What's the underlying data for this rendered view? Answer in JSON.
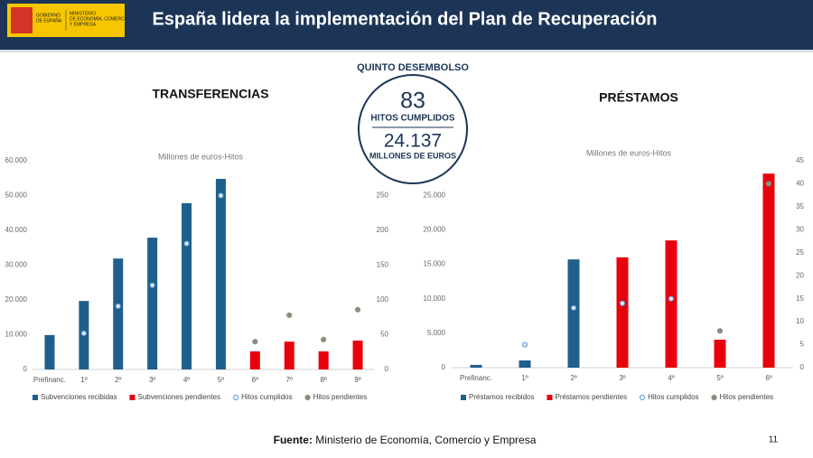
{
  "header": {
    "title": "España lidera la implementación del Plan de Recuperación",
    "logo_left": [
      "GOBIERNO",
      "DE ESPAÑA"
    ],
    "logo_right": [
      "MINISTERIO",
      "DE ECONOMÍA, COMERCIO",
      "Y EMPRESA"
    ]
  },
  "summary": {
    "label": "QUINTO DESEMBOLSO",
    "hitos": "83",
    "hitos_label": "HITOS CUMPLIDOS",
    "amount": "24.137",
    "amount_label": "MILLONES DE EUROS"
  },
  "chart_data": [
    {
      "type": "bar",
      "title": "TRANSFERENCIAS",
      "subtitle": "Millones de euros-Hitos",
      "categories": [
        "Prefinanc.",
        "1º",
        "2º",
        "3º",
        "4º",
        "5º",
        "6º",
        "7º",
        "8º",
        "9º"
      ],
      "ylim": [
        0,
        60000
      ],
      "yticks": [
        0,
        {
          "value": 10000,
          "label": "10.000"
        },
        {
          "value": 20000,
          "label": "20.000"
        },
        {
          "value": 30000,
          "label": "30.000"
        },
        {
          "value": 40000,
          "label": "40.000"
        },
        {
          "value": 50000,
          "label": "50.000"
        },
        {
          "value": 60000,
          "label": "60.000"
        }
      ],
      "y2lim": [
        0,
        300
      ],
      "y2ticks": [
        0,
        50,
        100,
        150,
        200,
        250
      ],
      "series": [
        {
          "name": "Subvenciones recibidas",
          "type": "bar",
          "color": "#1f5f8b",
          "values": [
            9900,
            19700,
            31900,
            37900,
            47800,
            54800,
            null,
            null,
            null,
            null
          ]
        },
        {
          "name": "Subvenciones pendientes",
          "type": "bar",
          "color": "#e8000d",
          "values": [
            null,
            null,
            null,
            null,
            null,
            null,
            5200,
            8000,
            5200,
            8300
          ]
        },
        {
          "name": "Hitos cumplidos",
          "type": "scatter",
          "axis": "y2",
          "color": "#5b9bd5",
          "values": [
            null,
            52,
            91,
            121,
            181,
            250,
            null,
            null,
            null,
            null
          ]
        },
        {
          "name": "Hitos pendientes",
          "type": "scatter",
          "axis": "y2",
          "color": "#8a8f7e",
          "values": [
            null,
            null,
            null,
            null,
            null,
            null,
            40,
            78,
            43,
            86
          ]
        }
      ]
    },
    {
      "type": "bar",
      "title": "PRÉSTAMOS",
      "subtitle": "Millones de euros-Hitos",
      "categories": [
        "Prefinanc.",
        "1º",
        "2º",
        "3º",
        "4º",
        "5º",
        "6º"
      ],
      "ylim": [
        0,
        30000
      ],
      "yticks": [
        0,
        {
          "value": 5000,
          "label": "5.000"
        },
        {
          "value": 10000,
          "label": "10.000"
        },
        {
          "value": 15000,
          "label": "15.000"
        },
        {
          "value": 20000,
          "label": "20.000"
        },
        {
          "value": 25000,
          "label": "25.000"
        }
      ],
      "y2lim": [
        0,
        45
      ],
      "y2ticks": [
        0,
        5,
        10,
        15,
        20,
        25,
        30,
        35,
        40,
        45
      ],
      "series": [
        {
          "name": "Préstamos recibidos",
          "type": "bar",
          "color": "#1f5f8b",
          "values": [
            400,
            1050,
            15700,
            null,
            null,
            null,
            null
          ]
        },
        {
          "name": "Préstamos pendientes",
          "type": "bar",
          "color": "#e8000d",
          "values": [
            null,
            null,
            null,
            16000,
            18450,
            4060,
            28140
          ]
        },
        {
          "name": "Hitos cumplidos",
          "type": "scatter",
          "axis": "y2",
          "color": "#5b9bd5",
          "values": [
            null,
            5,
            13,
            14,
            15,
            null,
            null
          ]
        },
        {
          "name": "Hitos pendientes",
          "type": "scatter",
          "axis": "y2",
          "color": "#8a8f7e",
          "values": [
            null,
            null,
            null,
            null,
            null,
            8,
            40
          ]
        }
      ]
    }
  ],
  "footer": {
    "source_label": "Fuente:",
    "source": "Ministerio de Economía, Comercio y Empresa",
    "page": "11"
  }
}
